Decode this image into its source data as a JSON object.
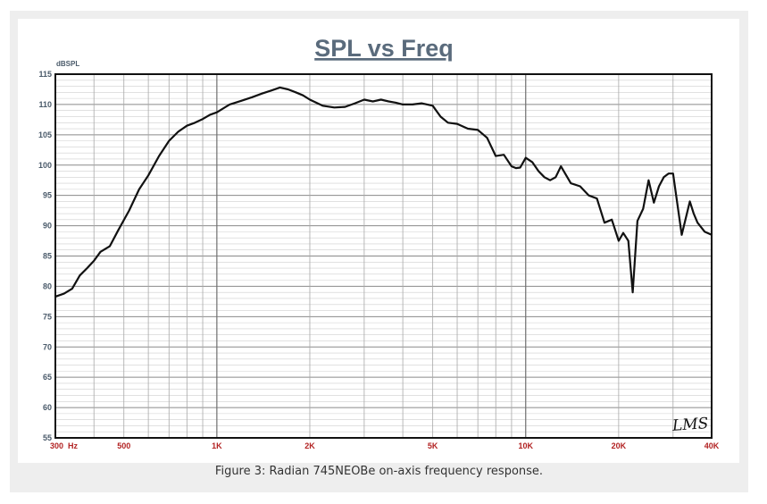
{
  "caption": "Figure 3: Radian 745NEOBe on-axis frequency response.",
  "chart_data": {
    "type": "line",
    "title": "SPL vs Freq",
    "ylabel": "dBSPL",
    "xlabel": "",
    "x_scale": "log",
    "xlim": [
      300,
      40000
    ],
    "ylim": [
      55,
      115
    ],
    "grid": true,
    "y_ticks": [
      115,
      110,
      105,
      100,
      95,
      90,
      85,
      80,
      75,
      70,
      65,
      60,
      55
    ],
    "x_ticks": [
      {
        "value": 300,
        "label": "300  Hz"
      },
      {
        "value": 500,
        "label": "500"
      },
      {
        "value": 1000,
        "label": "1K"
      },
      {
        "value": 2000,
        "label": "2K"
      },
      {
        "value": 5000,
        "label": "5K"
      },
      {
        "value": 10000,
        "label": "10K"
      },
      {
        "value": 20000,
        "label": "20K"
      },
      {
        "value": 40000,
        "label": "40K"
      }
    ],
    "watermark": "LMS",
    "colors": {
      "line": "#111111",
      "grid": "#999999",
      "title": "#5a6b7c",
      "x_ticks": "#b22222",
      "y_ticks": "#4a5a6a"
    },
    "series": [
      {
        "x": [
          300,
          320,
          340,
          360,
          380,
          400,
          420,
          450,
          480,
          520,
          560,
          600,
          650,
          700,
          750,
          800,
          850,
          900,
          950,
          1000,
          1100,
          1200,
          1300,
          1400,
          1500,
          1600,
          1700,
          1800,
          1900,
          2000,
          2200,
          2400,
          2600,
          2800,
          3000,
          3200,
          3400,
          3600,
          3800,
          4000,
          4300,
          4600,
          5000,
          5300,
          5600,
          6000,
          6500,
          7000,
          7500,
          8000,
          8500,
          9000,
          9300,
          9600,
          10000,
          10500,
          11000,
          11500,
          12000,
          12500,
          13000,
          14000,
          15000,
          16000,
          17000,
          18000,
          19000,
          20000,
          20700,
          21500,
          22200,
          23000,
          24000,
          25000,
          26000,
          27000,
          28000,
          29000,
          30000,
          32000,
          34000,
          35000,
          36000,
          38000,
          40000
        ],
        "y": [
          78.3,
          78.8,
          79.6,
          81.8,
          83.0,
          84.2,
          85.7,
          86.6,
          89.3,
          92.5,
          96.0,
          98.3,
          101.5,
          104.0,
          105.5,
          106.5,
          107.0,
          107.6,
          108.3,
          108.7,
          110.0,
          110.6,
          111.2,
          111.8,
          112.3,
          112.8,
          112.5,
          112.0,
          111.5,
          110.8,
          109.8,
          109.5,
          109.6,
          110.2,
          110.8,
          110.5,
          110.8,
          110.5,
          110.3,
          110.0,
          110.0,
          110.2,
          109.8,
          108.0,
          107.0,
          106.8,
          106.0,
          105.8,
          104.5,
          101.5,
          101.7,
          99.8,
          99.5,
          99.6,
          101.2,
          100.5,
          99.0,
          98.0,
          97.5,
          98.0,
          99.8,
          97.0,
          96.5,
          95.0,
          94.5,
          90.5,
          91.0,
          87.5,
          88.8,
          87.5,
          79.0,
          90.8,
          92.8,
          97.5,
          93.8,
          96.5,
          98.0,
          98.6,
          98.6,
          88.5,
          94.0,
          92.0,
          90.5,
          89.0,
          88.5
        ]
      }
    ]
  }
}
